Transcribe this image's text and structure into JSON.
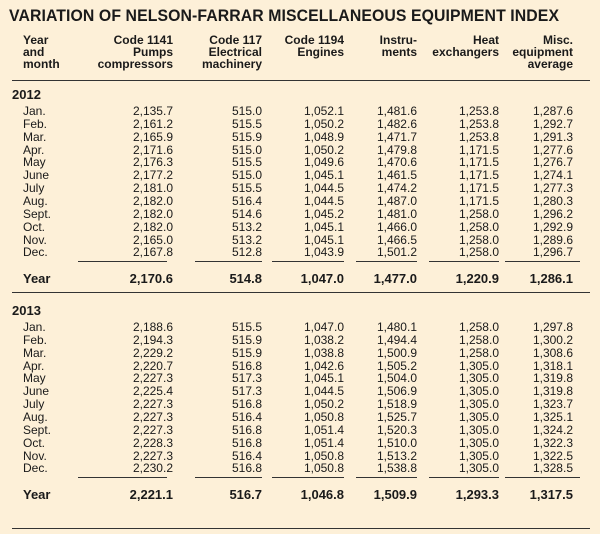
{
  "title": "VARIATION OF NELSON-FARRAR MISCELLANEOUS EQUIPMENT INDEX",
  "headers": {
    "year_month": "Year\nand\nmonth",
    "c1141": "Code 1141\nPumps\ncompressors",
    "c117": "Code 117\nElectrical\nmachinery",
    "c1194": "Code 1194\nEngines",
    "instruments": "Instru-\nments",
    "heat": "Heat\nexchangers",
    "misc": "Misc.\nequipment\naverage"
  },
  "sections": [
    {
      "year": "2012",
      "rows": [
        [
          "Jan.",
          "2,135.7",
          "515.0",
          "1,052.1",
          "1,481.6",
          "1,253.8",
          "1,287.6"
        ],
        [
          "Feb.",
          "2,161.2",
          "515.5",
          "1,050.2",
          "1,482.6",
          "1,253.8",
          "1,292.7"
        ],
        [
          "Mar.",
          "2,165.9",
          "515.9",
          "1,048.9",
          "1,471.7",
          "1,253.8",
          "1,291.3"
        ],
        [
          "Apr.",
          "2,171.6",
          "515.0",
          "1,050.2",
          "1,479.8",
          "1,171.5",
          "1,277.6"
        ],
        [
          "May",
          "2,176.3",
          "515.5",
          "1,049.6",
          "1,470.6",
          "1,171.5",
          "1,276.7"
        ],
        [
          "June",
          "2,177.2",
          "515.0",
          "1,045.1",
          "1,461.5",
          "1,171.5",
          "1,274.1"
        ],
        [
          "July",
          "2,181.0",
          "515.5",
          "1,044.5",
          "1,474.2",
          "1,171.5",
          "1,277.3"
        ],
        [
          "Aug.",
          "2,182.0",
          "516.4",
          "1,044.5",
          "1,487.0",
          "1,171.5",
          "1,280.3"
        ],
        [
          "Sept.",
          "2,182.0",
          "514.6",
          "1,045.2",
          "1,481.0",
          "1,258.0",
          "1,296.2"
        ],
        [
          "Oct.",
          "2,182.0",
          "513.2",
          "1,045.1",
          "1,466.0",
          "1,258.0",
          "1,292.9"
        ],
        [
          "Nov.",
          "2,165.0",
          "513.2",
          "1,045.1",
          "1,466.5",
          "1,258.0",
          "1,289.6"
        ],
        [
          "Dec.",
          "2,167.8",
          "512.8",
          "1,043.9",
          "1,501.2",
          "1,258.0",
          "1,296.7"
        ]
      ],
      "total": [
        "Year",
        "2,170.6",
        "514.8",
        "1,047.0",
        "1,477.0",
        "1,220.9",
        "1,286.1"
      ]
    },
    {
      "year": "2013",
      "rows": [
        [
          "Jan.",
          "2,188.6",
          "515.5",
          "1,047.0",
          "1,480.1",
          "1,258.0",
          "1,297.8"
        ],
        [
          "Feb.",
          "2,194.3",
          "515.9",
          "1,038.2",
          "1,494.4",
          "1,258.0",
          "1,300.2"
        ],
        [
          "Mar.",
          "2,229.2",
          "515.9",
          "1,038.8",
          "1,500.9",
          "1,258.0",
          "1,308.6"
        ],
        [
          "Apr.",
          "2,220.7",
          "516.8",
          "1,042.6",
          "1,505.2",
          "1,305.0",
          "1,318.1"
        ],
        [
          "May",
          "2,227.3",
          "517.3",
          "1,045.1",
          "1,504.0",
          "1,305.0",
          "1,319.8"
        ],
        [
          "June",
          "2,225.4",
          "517.3",
          "1,044.5",
          "1,506.9",
          "1,305.0",
          "1,319.8"
        ],
        [
          "July",
          "2,227.3",
          "516.8",
          "1,050.2",
          "1,518.9",
          "1,305.0",
          "1,323.7"
        ],
        [
          "Aug.",
          "2,227.3",
          "516.4",
          "1,050.8",
          "1,525.7",
          "1,305.0",
          "1,325.1"
        ],
        [
          "Sept.",
          "2,227.3",
          "516.8",
          "1,051.4",
          "1,520.3",
          "1,305.0",
          "1,324.2"
        ],
        [
          "Oct.",
          "2,228.3",
          "516.8",
          "1,051.4",
          "1,510.0",
          "1,305.0",
          "1,322.3"
        ],
        [
          "Nov.",
          "2,227.3",
          "516.4",
          "1,050.8",
          "1,513.2",
          "1,305.0",
          "1,322.5"
        ],
        [
          "Dec.",
          "2,230.2",
          "516.8",
          "1,050.8",
          "1,538.8",
          "1,305.0",
          "1,328.5"
        ]
      ],
      "total": [
        "Year",
        "2,221.1",
        "516.7",
        "1,046.8",
        "1,509.9",
        "1,293.3",
        "1,317.5"
      ]
    }
  ]
}
